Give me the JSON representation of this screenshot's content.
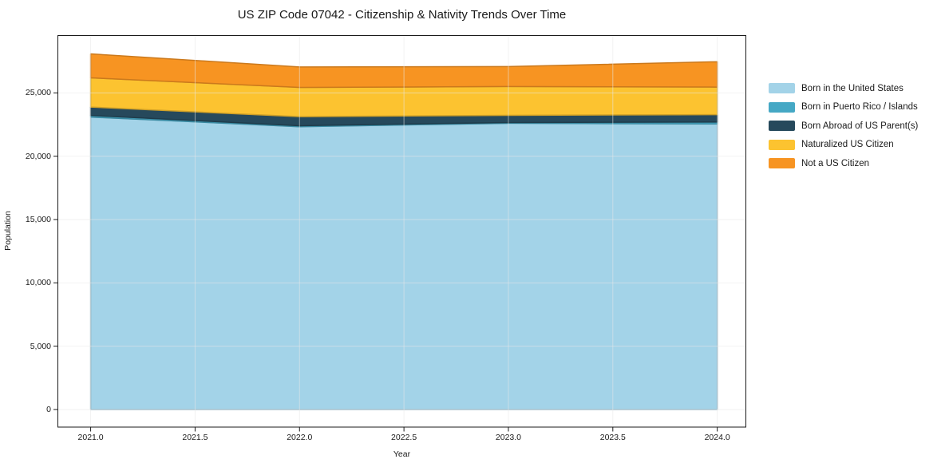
{
  "title": "US ZIP Code 07042 - Citizenship & Nativity Trends Over Time",
  "chart_data": {
    "type": "area",
    "stacked": true,
    "title": "US ZIP Code 07042 - Citizenship & Nativity Trends Over Time",
    "xlabel": "Year",
    "ylabel": "Population",
    "x": [
      2021,
      2022,
      2023,
      2024
    ],
    "series": [
      {
        "name": "Born in the United States",
        "color": "#a3d3e8",
        "values": [
          23090,
          22330,
          22600,
          22550
        ]
      },
      {
        "name": "Born in Puerto Rico / Islands",
        "color": "#45a8c5",
        "values": [
          130,
          80,
          60,
          150
        ]
      },
      {
        "name": "Born Abroad of US Parent(s)",
        "color": "#26495c",
        "values": [
          660,
          710,
          570,
          580
        ]
      },
      {
        "name": "Naturalized US Citizen",
        "color": "#fcc330",
        "values": [
          2310,
          2310,
          2270,
          2180
        ]
      },
      {
        "name": "Not a US Citizen",
        "color": "#f79422",
        "values": [
          1890,
          1620,
          1580,
          2000
        ]
      }
    ],
    "xlim": [
      2020.843,
      2024.137
    ],
    "ylim": [
      -1390,
      29530
    ],
    "xticks": [
      2021.0,
      2021.5,
      2022.0,
      2022.5,
      2023.0,
      2023.5,
      2024.0
    ],
    "xtick_labels": [
      "2021.0",
      "2021.5",
      "2022.0",
      "2022.5",
      "2023.0",
      "2023.5",
      "2024.0"
    ],
    "yticks": [
      0,
      5000,
      10000,
      15000,
      20000,
      25000
    ],
    "ytick_labels": [
      "0",
      "5,000",
      "10,000",
      "15,000",
      "20,000",
      "25,000"
    ],
    "grid": true,
    "legend_position": "right",
    "colors": {
      "spine": "#1a1a1a",
      "grid": "#e8e8e8",
      "text": "#1a1a1a",
      "background": "#ffffff"
    }
  }
}
